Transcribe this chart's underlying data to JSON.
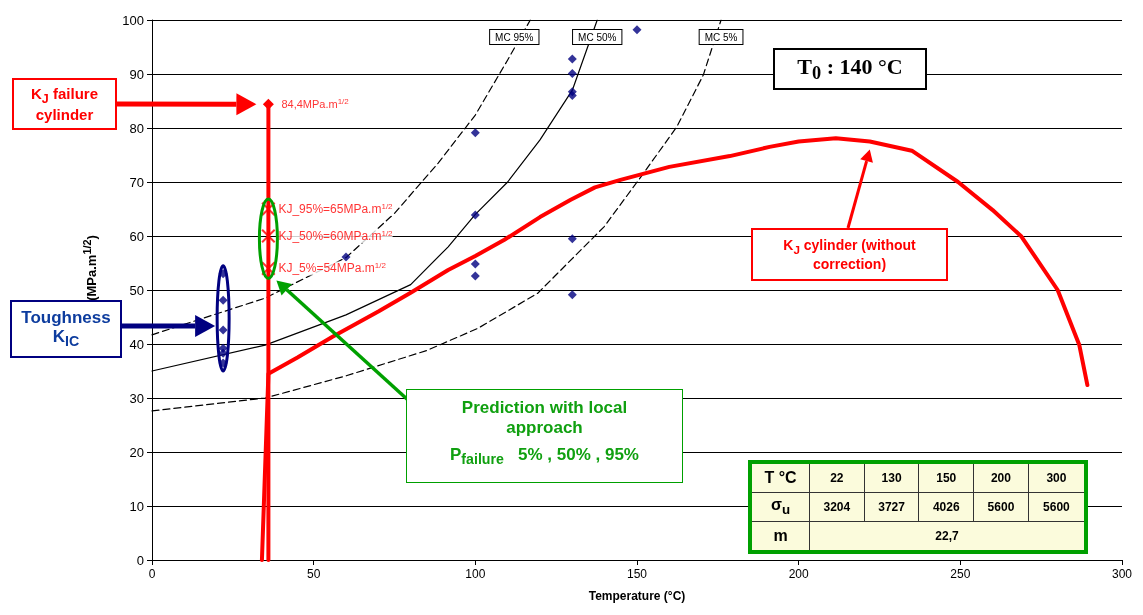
{
  "chart_data": {
    "type": "line",
    "xlabel": "Temperature (°C)",
    "ylabel": "(MPa.m$^{1/2}$)",
    "xlim": [
      0,
      300
    ],
    "xticks": [
      0,
      50,
      100,
      150,
      200,
      250,
      300
    ],
    "ylim": [
      0,
      100
    ],
    "yticks": [
      0,
      10,
      20,
      30,
      40,
      50,
      60,
      70,
      80,
      90,
      100
    ],
    "grid": "y",
    "legend": false,
    "series": [
      {
        "name": "MC 95%",
        "color": "#000000",
        "line_style": "dashed",
        "marker": "none",
        "x": [
          0,
          35,
          60,
          75,
          88.5,
          100,
          110,
          117
        ],
        "values": [
          41.7,
          48.5,
          56,
          64.2,
          73.5,
          82.4,
          92.6,
          100
        ]
      },
      {
        "name": "MC 50%",
        "color": "#000000",
        "line_style": "solid",
        "marker": "none",
        "x": [
          0,
          35,
          60,
          80,
          91.6,
          100,
          110,
          120,
          130,
          137.7
        ],
        "values": [
          35,
          39.8,
          45.4,
          51,
          58,
          64,
          70,
          77.8,
          87,
          100
        ]
      },
      {
        "name": "MC 5%",
        "color": "#000000",
        "line_style": "dashed",
        "marker": "none",
        "x": [
          0,
          35,
          60,
          85,
          100.8,
          119.3,
          139.8,
          152,
          162.3,
          170.5,
          176
        ],
        "values": [
          27.6,
          30,
          34.1,
          38.8,
          42.9,
          49.4,
          61.7,
          71.6,
          80.2,
          89.8,
          100
        ]
      },
      {
        "type": "scatter",
        "color": "#000080",
        "marker": "diamond",
        "x": [
          22,
          22,
          22,
          22,
          22,
          22,
          60,
          100,
          100,
          100,
          100,
          130,
          130,
          130,
          130,
          130,
          130,
          150
        ],
        "values": [
          53,
          48.1,
          42.6,
          39.2,
          38.3,
          36.5,
          56.1,
          79.1,
          63.9,
          54.8,
          52.6,
          92.8,
          90.1,
          86.7,
          86,
          59.5,
          49.1,
          98.2
        ]
      },
      {
        "color": "#ff0000",
        "line_style": "solid",
        "marker": "none",
        "x": [
          34,
          36,
          45,
          55.7,
          70,
          80,
          91.6,
          100,
          109,
          120,
          129.5,
          137,
          144.9,
          160,
          178.7,
          191,
          200,
          211.5,
          222,
          235,
          249.3,
          260,
          268.9,
          280.1,
          286.8,
          289.3
        ],
        "values": [
          0,
          34.5,
          37.5,
          41.3,
          46,
          49.5,
          53.7,
          56.3,
          59.3,
          63.5,
          66.7,
          69,
          70.4,
          72.8,
          74.8,
          76.5,
          77.5,
          78.1,
          77.5,
          75.8,
          70,
          64.8,
          59.9,
          50,
          39.8,
          32.4
        ]
      },
      {
        "color": "#ff0000",
        "line_style": "solid",
        "marker": "diamond",
        "x": [
          36,
          36
        ],
        "values": [
          0,
          84.4
        ],
        "value_labels": [
          null,
          "84,4MPa.m$^{1/2}$"
        ]
      },
      {
        "type": "scatter",
        "color": "#ff0000",
        "marker": "cross",
        "x": [
          36,
          36,
          36
        ],
        "values": [
          54,
          60,
          65
        ],
        "value_labels": [
          "KJ_5%=54MPa.m$^{1/2}$",
          "KJ_50%=60MPa.m$^{1/2}$",
          "KJ_95%=65MPa.m$^{1/2}$"
        ]
      }
    ],
    "annotations": [
      "T$_{0}$ : 140 °C",
      "K$_{J}$ failure cylinder",
      "Toughness K$_{IC}$",
      "K$_{J}$ cylinder (without correction)",
      "Prediction with local approach",
      "P$_{failure}$   5% , 50% , 95%",
      "T °C",
      "22",
      "130",
      "150",
      "200",
      "300",
      "σ$_{u}$",
      "3204",
      "3727",
      "4026",
      "5600",
      "5600",
      "m",
      "22,7"
    ]
  }
}
